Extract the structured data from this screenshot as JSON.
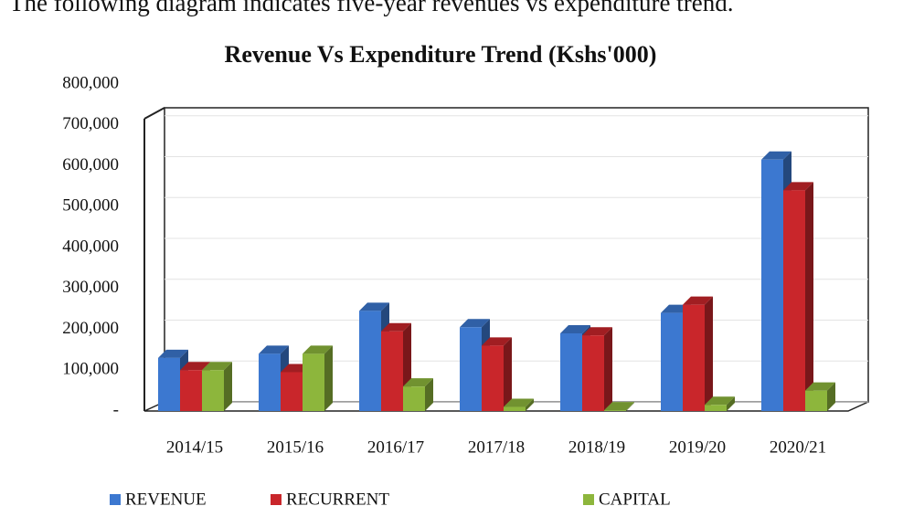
{
  "caption": "The following diagram indicates five-year revenues vs expenditure trend.",
  "chart_data": {
    "type": "bar3d",
    "title": "Revenue Vs Expenditure Trend (Kshs'000)",
    "categories": [
      "2014/15",
      "2015/16",
      "2016/17",
      "2017/18",
      "2018/19",
      "2019/20",
      "2020/21"
    ],
    "series": [
      {
        "name": "REVENUE",
        "color": "#3c78d0",
        "values": [
          130000,
          140000,
          245000,
          205000,
          190000,
          240000,
          615000
        ]
      },
      {
        "name": "RECURRENT",
        "color": "#c9262b",
        "values": [
          100000,
          95000,
          195000,
          160000,
          185000,
          260000,
          540000
        ]
      },
      {
        "name": "CAPITAL",
        "color": "#8db63c",
        "values": [
          100000,
          140000,
          60000,
          10000,
          2000,
          15000,
          50000
        ]
      }
    ],
    "ylim": [
      0,
      800000
    ],
    "yticks": [
      {
        "value": 0,
        "label": "-"
      },
      {
        "value": 100000,
        "label": "100,000"
      },
      {
        "value": 200000,
        "label": "200,000"
      },
      {
        "value": 300000,
        "label": "300,000"
      },
      {
        "value": 400000,
        "label": "400,000"
      },
      {
        "value": 500000,
        "label": "500,000"
      },
      {
        "value": 600000,
        "label": "600,000"
      },
      {
        "value": 700000,
        "label": "700,000"
      },
      {
        "value": 800000,
        "label": "800,000"
      }
    ],
    "grid": true,
    "legend": "bottom"
  }
}
